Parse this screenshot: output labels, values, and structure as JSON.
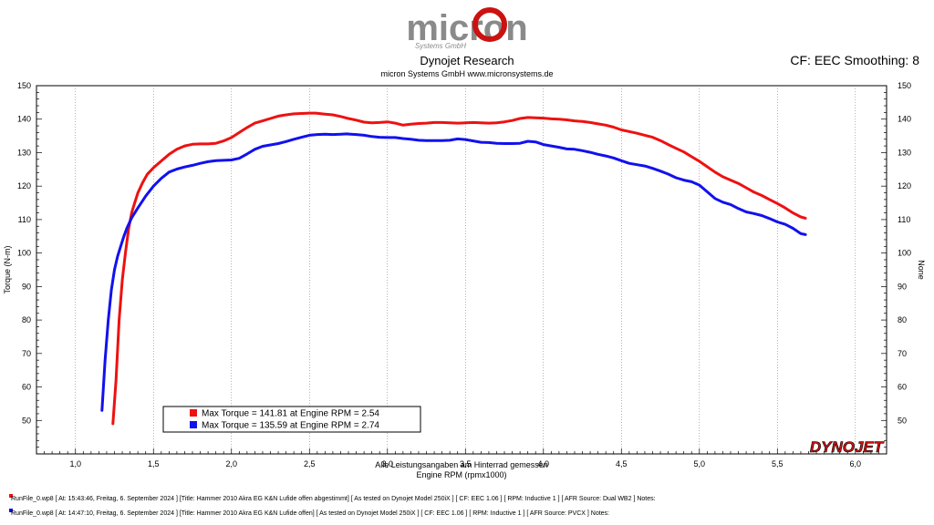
{
  "header": {
    "logo_text": "micron",
    "logo_sub": "Systems GmbH",
    "title": "Dynojet Research",
    "subtitle": "micron Systems GmbH  www.micronsystems.de",
    "cf_text": "CF: EEC Smoothing: 8",
    "brand_logo": "DYNOJET"
  },
  "chart_data": {
    "type": "line",
    "xlabel": "Engine RPM (rpmx1000)",
    "ylabel": "Torque (N-m)",
    "ylabel_right": "None",
    "note": "Alle Leistungsangaben am Hinterrad gemessen",
    "xlim": [
      0.75,
      6.2
    ],
    "ylim": [
      40,
      150
    ],
    "x_ticks": [
      "1,0",
      "1,5",
      "2,0",
      "2,5",
      "3,0",
      "3,5",
      "4,0",
      "4,5",
      "5,0",
      "5,5",
      "6,0"
    ],
    "y_ticks": [
      "50",
      "60",
      "70",
      "80",
      "90",
      "100",
      "110",
      "120",
      "130",
      "140",
      "150"
    ],
    "series": [
      {
        "color": "#ee1111",
        "x": [
          1.24,
          1.26,
          1.28,
          1.3,
          1.32,
          1.34,
          1.36,
          1.38,
          1.4,
          1.43,
          1.46,
          1.5,
          1.55,
          1.6,
          1.65,
          1.7,
          1.75,
          1.8,
          1.85,
          1.9,
          1.95,
          2.0,
          2.05,
          2.1,
          2.15,
          2.2,
          2.25,
          2.3,
          2.35,
          2.4,
          2.45,
          2.5,
          2.54,
          2.6,
          2.65,
          2.7,
          2.75,
          2.8,
          2.85,
          2.9,
          2.95,
          3.0,
          3.05,
          3.1,
          3.15,
          3.2,
          3.25,
          3.3,
          3.35,
          3.4,
          3.45,
          3.5,
          3.55,
          3.6,
          3.65,
          3.7,
          3.75,
          3.8,
          3.85,
          3.9,
          3.95,
          4.0,
          4.05,
          4.1,
          4.15,
          4.2,
          4.25,
          4.3,
          4.35,
          4.4,
          4.45,
          4.5,
          4.55,
          4.6,
          4.65,
          4.7,
          4.75,
          4.8,
          4.85,
          4.9,
          4.95,
          5.0,
          5.05,
          5.1,
          5.15,
          5.2,
          5.25,
          5.3,
          5.35,
          5.4,
          5.45,
          5.5,
          5.55,
          5.6,
          5.65,
          5.68
        ],
        "y": [
          49,
          62,
          80,
          92,
          100,
          107,
          112,
          115,
          118,
          121,
          123.5,
          125.5,
          127.5,
          129.5,
          131,
          132,
          132.5,
          132.6,
          132.6,
          132.8,
          133.5,
          134.5,
          136,
          137.5,
          138.8,
          139.5,
          140.2,
          140.9,
          141.3,
          141.6,
          141.7,
          141.8,
          141.81,
          141.5,
          141.3,
          140.8,
          140.2,
          139.7,
          139.1,
          138.9,
          139.0,
          139.2,
          138.8,
          138.2,
          138.5,
          138.7,
          138.8,
          139.0,
          139.0,
          138.9,
          138.8,
          138.9,
          139.0,
          138.9,
          138.8,
          138.9,
          139.2,
          139.6,
          140.2,
          140.5,
          140.4,
          140.3,
          140.1,
          140.0,
          139.8,
          139.5,
          139.3,
          139.0,
          138.6,
          138.2,
          137.6,
          136.8,
          136.3,
          135.8,
          135.2,
          134.6,
          133.6,
          132.4,
          131.3,
          130.2,
          128.8,
          127.4,
          125.8,
          124.2,
          122.8,
          121.8,
          120.8,
          119.5,
          118.2,
          117.2,
          116.0,
          114.8,
          113.5,
          112.0,
          110.8,
          110.4
        ]
      },
      {
        "color": "#1111ee",
        "x": [
          1.17,
          1.19,
          1.21,
          1.23,
          1.25,
          1.27,
          1.29,
          1.31,
          1.33,
          1.36,
          1.4,
          1.45,
          1.5,
          1.55,
          1.6,
          1.65,
          1.7,
          1.75,
          1.8,
          1.85,
          1.9,
          1.95,
          2.0,
          2.05,
          2.1,
          2.15,
          2.2,
          2.25,
          2.3,
          2.35,
          2.4,
          2.45,
          2.5,
          2.55,
          2.6,
          2.65,
          2.7,
          2.74,
          2.8,
          2.85,
          2.9,
          2.95,
          3.0,
          3.05,
          3.1,
          3.15,
          3.2,
          3.25,
          3.3,
          3.35,
          3.4,
          3.45,
          3.5,
          3.55,
          3.6,
          3.65,
          3.7,
          3.75,
          3.8,
          3.85,
          3.9,
          3.95,
          4.0,
          4.05,
          4.1,
          4.15,
          4.2,
          4.25,
          4.3,
          4.35,
          4.4,
          4.45,
          4.5,
          4.55,
          4.6,
          4.65,
          4.7,
          4.75,
          4.8,
          4.85,
          4.9,
          4.95,
          5.0,
          5.05,
          5.1,
          5.15,
          5.2,
          5.25,
          5.3,
          5.35,
          5.4,
          5.45,
          5.5,
          5.55,
          5.6,
          5.65,
          5.68
        ],
        "y": [
          53,
          68,
          80,
          89,
          95,
          99,
          102,
          105,
          107.5,
          110.5,
          113.5,
          117,
          120,
          122.3,
          124.2,
          125.1,
          125.7,
          126.2,
          126.8,
          127.3,
          127.6,
          127.7,
          127.8,
          128.3,
          129.6,
          131.0,
          131.9,
          132.3,
          132.7,
          133.3,
          134.0,
          134.6,
          135.2,
          135.4,
          135.5,
          135.4,
          135.5,
          135.59,
          135.4,
          135.2,
          134.8,
          134.6,
          134.5,
          134.5,
          134.2,
          134.0,
          133.7,
          133.6,
          133.6,
          133.6,
          133.7,
          134.1,
          133.9,
          133.5,
          133.1,
          133.0,
          132.8,
          132.7,
          132.7,
          132.8,
          133.4,
          133.2,
          132.4,
          132.0,
          131.6,
          131.1,
          131.0,
          130.6,
          130.1,
          129.5,
          129.0,
          128.4,
          127.6,
          126.8,
          126.4,
          126.0,
          125.3,
          124.5,
          123.6,
          122.5,
          121.8,
          121.3,
          120.3,
          118.3,
          116.3,
          115.2,
          114.5,
          113.3,
          112.3,
          111.8,
          111.2,
          110.3,
          109.3,
          108.6,
          107.4,
          105.8,
          105.5
        ]
      }
    ],
    "legend": [
      {
        "color": "#ee1111",
        "label": "Max Torque = 141.81 at Engine RPM = 2.54"
      },
      {
        "color": "#1111ee",
        "label": "Max Torque = 135.59 at Engine RPM = 2.74"
      }
    ]
  },
  "footer": {
    "run1": "RunFile_0.wp8  [  At:  15:43:46,  Freitag,  6.  September  2024  ]  [Title:  Hammer  2010  Akra  EG  K&N  Lufide  offen  abgestimmt]   [  As  tested  on  Dynojet  Model  250iX  ]  [  CF:  EEC  1.06  ]  [  RPM:  Inductive  1  ]  [  AFR  Source:  Dual  WB2  ]  Notes:",
    "run2": "RunFile_0.wp8  [  At:  14:47:10,  Freitag,  6.  September  2024  ]  [Title:  Hammer  2010  Akra  EG  K&N  Lufide  offen]   [  As  tested  on  Dynojet  Model  250iX  ]  [  CF:  EEC  1.06  ]  [  RPM:  Inductive  1  ]  [  AFR  Source:  PVCX  ]  Notes:",
    "run1_color": "#ee1111",
    "run2_color": "#1111ee"
  }
}
